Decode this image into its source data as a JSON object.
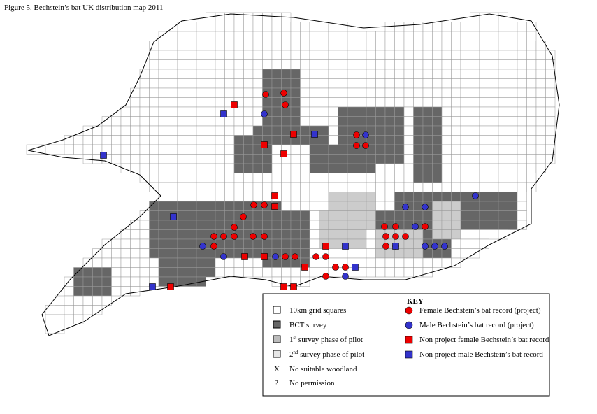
{
  "title": "Figure 5. Bechstein’s bat UK distribution map 2011",
  "key": {
    "heading": "KEY",
    "left": [
      {
        "label": "10km grid squares"
      },
      {
        "label": "BCT survey"
      },
      {
        "number": "1",
        "suffix": "st",
        "label": " survey phase of pilot"
      },
      {
        "number": "2",
        "suffix": "nd",
        "label": " survey phase of pilot"
      },
      {
        "symbol": "X",
        "label": "No suitable woodland"
      },
      {
        "symbol": "?",
        "label": "No permission"
      }
    ],
    "right": [
      {
        "label": "Female Bechstein’s bat record (project)"
      },
      {
        "label": "Male Bechstein’s bat record (project)"
      },
      {
        "label": "Non project female Bechstein’s bat record"
      },
      {
        "label": "Non project male Bechstein’s bat record"
      }
    ]
  }
}
